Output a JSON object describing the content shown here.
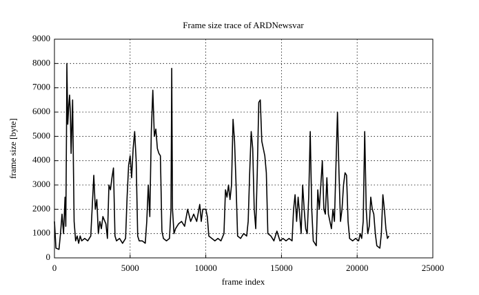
{
  "chart_data": {
    "type": "line",
    "title": "Frame size trace of ARDNewsvar",
    "x_label": "frame index",
    "y_label": "frame size [byte]",
    "xlim": [
      0,
      25000
    ],
    "xticks": [
      0,
      5000,
      10000,
      15000,
      20000,
      25000
    ],
    "ylim": [
      0,
      9000
    ],
    "yticks": [
      0,
      1000,
      2000,
      3000,
      4000,
      5000,
      6000,
      7000,
      8000,
      9000
    ],
    "grid": true,
    "color": "#000000",
    "x": [
      0,
      100,
      300,
      400,
      500,
      600,
      700,
      750,
      800,
      820,
      880,
      950,
      1000,
      1050,
      1100,
      1200,
      1300,
      1400,
      1500,
      1600,
      1700,
      1800,
      2000,
      2200,
      2400,
      2600,
      2700,
      2800,
      2900,
      3000,
      3100,
      3200,
      3400,
      3500,
      3600,
      3700,
      3800,
      3900,
      4000,
      4100,
      4300,
      4500,
      4700,
      4800,
      4900,
      5000,
      5100,
      5200,
      5300,
      5400,
      5500,
      5600,
      5800,
      6000,
      6100,
      6200,
      6300,
      6400,
      6500,
      6600,
      6700,
      6800,
      6900,
      7000,
      7100,
      7200,
      7400,
      7600,
      7700,
      7750,
      7800,
      7900,
      8000,
      8200,
      8400,
      8600,
      8800,
      9000,
      9200,
      9400,
      9600,
      9700,
      9800,
      10000,
      10100,
      10200,
      10400,
      10600,
      10800,
      11000,
      11200,
      11300,
      11400,
      11500,
      11600,
      11700,
      11800,
      11900,
      12000,
      12100,
      12300,
      12500,
      12700,
      12800,
      12900,
      13000,
      13100,
      13200,
      13300,
      13400,
      13500,
      13600,
      13700,
      13800,
      13900,
      14000,
      14100,
      14300,
      14500,
      14700,
      14900,
      15100,
      15300,
      15500,
      15700,
      15800,
      15900,
      16000,
      16100,
      16200,
      16300,
      16400,
      16500,
      16600,
      16700,
      16800,
      16900,
      17000,
      17100,
      17300,
      17400,
      17500,
      17600,
      17700,
      17800,
      17900,
      18000,
      18100,
      18300,
      18400,
      18500,
      18600,
      18700,
      18800,
      18900,
      19000,
      19100,
      19200,
      19300,
      19400,
      19500,
      19700,
      19900,
      20100,
      20200,
      20300,
      20400,
      20500,
      20600,
      20700,
      20800,
      20900,
      21000,
      21100,
      21200,
      21300,
      21500,
      21600,
      21700,
      21800,
      21900,
      22000,
      22100
    ],
    "values": [
      1500,
      400,
      350,
      1000,
      1800,
      1000,
      2500,
      1300,
      5500,
      8000,
      5500,
      6300,
      6700,
      6000,
      4300,
      6500,
      1500,
      700,
      900,
      600,
      900,
      700,
      800,
      700,
      900,
      3400,
      2000,
      2400,
      1000,
      1500,
      1200,
      1700,
      1400,
      800,
      3000,
      2800,
      3300,
      3700,
      900,
      700,
      800,
      600,
      800,
      2500,
      3800,
      4200,
      3300,
      4500,
      5200,
      4000,
      900,
      700,
      700,
      600,
      1500,
      3000,
      1700,
      5200,
      6900,
      5000,
      5300,
      4500,
      4300,
      4200,
      1100,
      800,
      700,
      800,
      2000,
      7800,
      2000,
      1000,
      1200,
      1400,
      1500,
      1300,
      2000,
      1500,
      1800,
      1500,
      2200,
      1500,
      2000,
      2000,
      1700,
      900,
      800,
      700,
      800,
      700,
      1000,
      2800,
      2500,
      3000,
      2400,
      3000,
      5700,
      4800,
      3000,
      900,
      800,
      1000,
      900,
      1500,
      3500,
      5200,
      4500,
      2000,
      1200,
      3500,
      6400,
      6500,
      4800,
      4500,
      4200,
      3500,
      1000,
      900,
      700,
      1100,
      700,
      800,
      700,
      800,
      700,
      2000,
      2600,
      1500,
      2500,
      1800,
      1000,
      3000,
      2000,
      1200,
      1000,
      2500,
      5200,
      2000,
      700,
      500,
      2800,
      2000,
      3000,
      4000,
      2000,
      1800,
      3300,
      1800,
      1200,
      2000,
      1500,
      3800,
      6000,
      3500,
      1500,
      2000,
      3000,
      3500,
      3400,
      1500,
      800,
      700,
      800,
      700,
      1000,
      800,
      1500,
      5200,
      2000,
      1000,
      1300,
      2500,
      2000,
      1800,
      1000,
      500,
      400,
      1000,
      2600,
      2000,
      1200,
      800,
      900
    ]
  }
}
